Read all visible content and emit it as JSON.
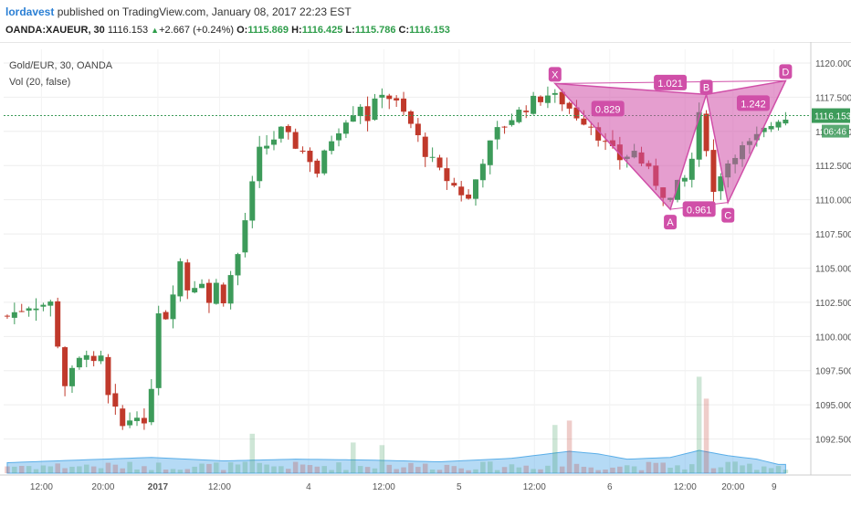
{
  "header": {
    "author": "lordavest",
    "published_text": "published on TradingView.com, January 08, 2017 22:23 EST",
    "symbol": "OANDA:XAUEUR, 30",
    "last": "1116.153",
    "change": "+2.667 (+0.24%)",
    "o_label": "O:",
    "o": "1115.869",
    "h_label": "H:",
    "h": "1116.425",
    "l_label": "L:",
    "l": "1115.786",
    "c_label": "C:",
    "c": "1116.153"
  },
  "chart_legend": {
    "series_label": "Gold/EUR, 30, OANDA",
    "volume_label": "Vol (20, false)"
  },
  "price_tag": {
    "value": "1116.153",
    "countdown": "06:46"
  },
  "colors": {
    "up": "#3d9b5a",
    "down": "#c0392b",
    "pattern": "#d04fa8",
    "volume_ma": "#5aaee8"
  },
  "chart_data": {
    "type": "candlestick",
    "title": "Gold/EUR, 30, OANDA",
    "ylim": [
      1090.0,
      1121.0
    ],
    "y_ticks": [
      "1120.000",
      "1117.500",
      "1115.000",
      "1112.500",
      "1110.000",
      "1107.500",
      "1105.000",
      "1102.500",
      "1100.000",
      "1097.500",
      "1095.000",
      "1092.500"
    ],
    "x_ticks": [
      "12:00",
      "20:00",
      "2017",
      "12:00",
      "4",
      "12:00",
      "5",
      "12:00",
      "6",
      "12:00",
      "20:00",
      "9"
    ],
    "price_path": [
      [
        0,
        1101.5
      ],
      [
        3,
        1102.3
      ],
      [
        6,
        1102.4
      ],
      [
        7,
        1099.5
      ],
      [
        8,
        1096.5
      ],
      [
        10,
        1098.2
      ],
      [
        11,
        1099.0
      ],
      [
        12,
        1097.8
      ],
      [
        13,
        1098.3
      ],
      [
        14,
        1095.5
      ],
      [
        16,
        1093.4
      ],
      [
        18,
        1094.5
      ],
      [
        19,
        1093.2
      ],
      [
        20,
        1096.5
      ],
      [
        21,
        1102.0
      ],
      [
        22,
        1101.5
      ],
      [
        24,
        1105.5
      ],
      [
        25,
        1103.5
      ],
      [
        27,
        1104.2
      ],
      [
        28,
        1102.5
      ],
      [
        29,
        1103.8
      ],
      [
        30,
        1102.8
      ],
      [
        32,
        1106.0
      ],
      [
        35,
        1113.5
      ],
      [
        38,
        1115.0
      ],
      [
        40,
        1114.0
      ],
      [
        42,
        1113.0
      ],
      [
        43,
        1112.0
      ],
      [
        45,
        1114.5
      ],
      [
        47,
        1116.0
      ],
      [
        49,
        1117.0
      ],
      [
        50,
        1116.0
      ],
      [
        52,
        1118.0
      ],
      [
        54,
        1117.0
      ],
      [
        56,
        1115.5
      ],
      [
        58,
        1113.5
      ],
      [
        60,
        1112.0
      ],
      [
        62,
        1111.0
      ],
      [
        64,
        1110.0
      ],
      [
        66,
        1113.0
      ],
      [
        68,
        1115.0
      ],
      [
        70,
        1116.0
      ],
      [
        73,
        1117.2
      ],
      [
        75,
        1117.7
      ],
      [
        77,
        1117.2
      ],
      [
        79,
        1116.2
      ],
      [
        81,
        1115.5
      ],
      [
        83,
        1114.0
      ],
      [
        85,
        1113.0
      ],
      [
        87,
        1113.5
      ],
      [
        89,
        1112.0
      ],
      [
        91,
        1110.5
      ],
      [
        92,
        1110.0
      ],
      [
        93,
        1111.0
      ],
      [
        94,
        1111.5
      ],
      [
        95,
        1113.0
      ],
      [
        96,
        1116.0
      ],
      [
        97,
        1114.0
      ],
      [
        98,
        1110.5
      ],
      [
        99,
        1112.0
      ],
      [
        101,
        1113.5
      ],
      [
        103,
        1114.0
      ],
      [
        105,
        1115.0
      ],
      [
        107,
        1116.0
      ]
    ],
    "volume_ma_path": [
      [
        0,
        1.2
      ],
      [
        10,
        1.5
      ],
      [
        20,
        1.8
      ],
      [
        30,
        1.4
      ],
      [
        40,
        1.6
      ],
      [
        50,
        1.5
      ],
      [
        60,
        1.3
      ],
      [
        70,
        1.7
      ],
      [
        78,
        2.5
      ],
      [
        82,
        2.2
      ],
      [
        86,
        1.6
      ],
      [
        92,
        1.8
      ],
      [
        96,
        2.6
      ],
      [
        100,
        2.0
      ],
      [
        104,
        1.6
      ],
      [
        107,
        1.0
      ]
    ],
    "volume_spikes": [
      [
        34,
        4.5
      ],
      [
        48,
        3.5
      ],
      [
        52,
        3.2
      ],
      [
        76,
        5.5
      ],
      [
        78,
        6.0
      ],
      [
        96,
        11.0
      ],
      [
        97,
        8.5
      ]
    ],
    "harmonic_pattern": {
      "points": {
        "X": [
          76,
          1118.5
        ],
        "A": [
          92,
          1109.3
        ],
        "B": [
          97,
          1117.7
        ],
        "C": [
          100,
          1109.8
        ],
        "D": [
          108,
          1118.7
        ]
      },
      "labels": [
        "X",
        "A",
        "B",
        "C",
        "D"
      ],
      "ratios": [
        "0.829",
        "1.021",
        "1.242",
        "0.961"
      ]
    }
  }
}
